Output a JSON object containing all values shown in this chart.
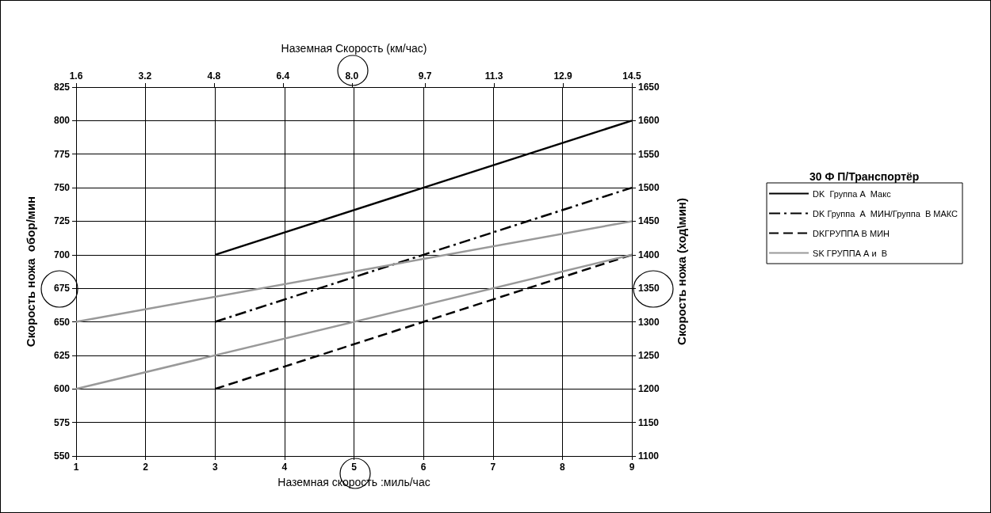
{
  "chart_data": {
    "type": "line",
    "xlabel": "Наземная скорость :миль/час",
    "x2label": "Наземная Скорость (км/час)",
    "ylabel": "Скорость ножа  обор/мин",
    "y2label": "Скорость ножа (ход\\мин)",
    "legend_title": "30 Ф П/Транспортёр",
    "xlim": [
      1,
      9
    ],
    "xticks": [
      1,
      2,
      3,
      4,
      5,
      6,
      7,
      8,
      9
    ],
    "x2lim": [
      1.6,
      14.5
    ],
    "x2ticks": [
      1.6,
      3.2,
      4.8,
      6.4,
      {
        "value": 8,
        "label": "8.0"
      },
      9.7,
      11.3,
      12.9,
      14.5
    ],
    "ylim": [
      550,
      825
    ],
    "yticks": [
      550,
      575,
      600,
      625,
      650,
      675,
      700,
      725,
      750,
      775,
      800,
      825
    ],
    "y2lim": [
      1100,
      1650
    ],
    "y2ticks": [
      1100,
      1150,
      1200,
      1250,
      1300,
      1350,
      1400,
      1450,
      1500,
      1550,
      1600,
      1650
    ],
    "grid": true,
    "legend": "right",
    "marker": "none",
    "series": [
      {
        "name": "DK  Группа А  Макс",
        "color": "#000000",
        "line_style": "solid",
        "x": [
          3,
          9
        ],
        "values": [
          700,
          800
        ]
      },
      {
        "name": "DK Группа  А  МИН/Группа  В МАКС",
        "color": "#000000",
        "line_style": "dashdot",
        "x": [
          3,
          6,
          9
        ],
        "values": [
          650,
          700,
          750
        ]
      },
      {
        "name": "DKГРУППА В МИН",
        "color": "#000000",
        "line_style": "dashed",
        "x": [
          3,
          6,
          9
        ],
        "values": [
          600,
          650,
          700
        ]
      },
      {
        "name": "SK ГРУППА А и  В",
        "color": "#999999",
        "line_style": "solid",
        "x": [
          1,
          9
        ],
        "values": [
          650,
          725
        ]
      },
      {
        "color": "#999999",
        "line_style": "solid",
        "x": [
          1,
          9
        ],
        "values": [
          600,
          700
        ]
      }
    ]
  }
}
